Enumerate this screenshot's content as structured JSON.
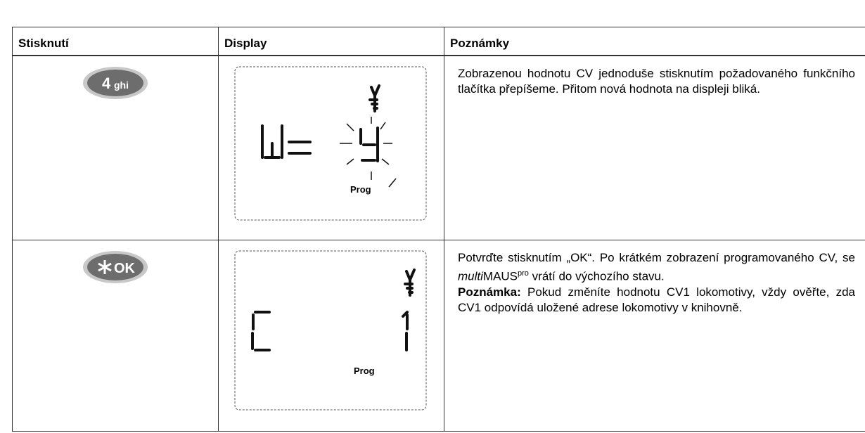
{
  "table": {
    "headers": [
      "Stisknutí",
      "Display",
      "Poznámky"
    ],
    "rows": [
      {
        "button": {
          "main": "4",
          "sub": "ghi"
        },
        "display": "Prog",
        "notes": [
          "Zobrazenou hodnotu CV jednoduše stisknutím požadovaného funkčního tlačítka přepíšeme. Přitom nová hodnota na displeji bliká."
        ]
      },
      {
        "button": {
          "main": "OK"
        },
        "display": "Prog",
        "notes": [
          "Potvrďte stisknutím „OK“. Po krátkém zobrazení programovaného CV, se ",
          "multi",
          "MAUS",
          "pro",
          " vrátí do výchozího stavu.",
          "Poznámka:",
          " Pokud změníte hodnotu CV1 lokomotivy, vždy ověřte, zda CV1 odpovídá uložené adrese lokomotivy v knihovně."
        ]
      }
    ]
  }
}
